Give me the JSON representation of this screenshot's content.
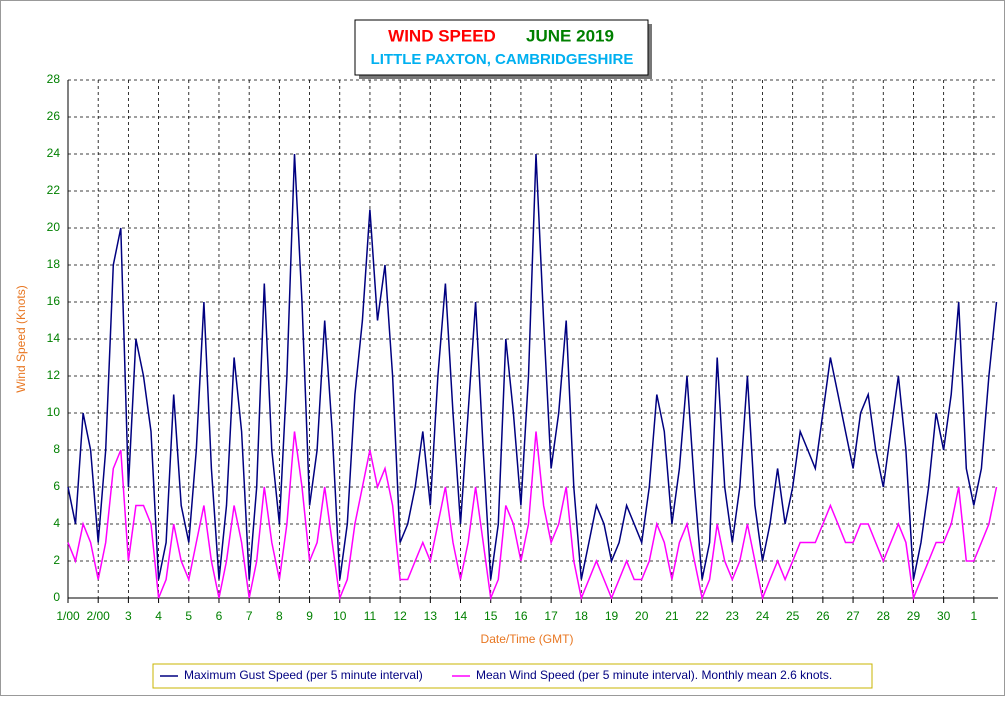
{
  "chart_data": {
    "type": "line",
    "title": "WIND SPEED",
    "period": "JUNE 2019",
    "subtitle": "LITTLE PAXTON, CAMBRIDGESHIRE",
    "ylabel": "Wind Speed (Knots)",
    "xlabel": "Date/Time (GMT)",
    "grid": true,
    "legend": "bottom",
    "xlim": [
      1,
      31.8
    ],
    "ylim": [
      0,
      28
    ],
    "yticks": [
      0,
      2,
      4,
      6,
      8,
      10,
      12,
      14,
      16,
      18,
      20,
      22,
      24,
      26,
      28
    ],
    "xticks": [
      {
        "value": 1,
        "label": "1/00"
      },
      {
        "value": 2,
        "label": "2/00"
      },
      3,
      4,
      5,
      6,
      7,
      8,
      9,
      10,
      11,
      12,
      13,
      14,
      15,
      16,
      17,
      18,
      19,
      20,
      21,
      22,
      23,
      24,
      25,
      26,
      27,
      28,
      29,
      30,
      {
        "value": 31,
        "label": "1"
      }
    ],
    "x": [
      1,
      1.25,
      1.5,
      1.75,
      2,
      2.25,
      2.5,
      2.75,
      3,
      3.25,
      3.5,
      3.75,
      4,
      4.25,
      4.5,
      4.75,
      5,
      5.25,
      5.5,
      5.75,
      6,
      6.25,
      6.5,
      6.75,
      7,
      7.25,
      7.5,
      7.75,
      8,
      8.25,
      8.5,
      8.75,
      9,
      9.25,
      9.5,
      9.75,
      10,
      10.25,
      10.5,
      10.75,
      11,
      11.25,
      11.5,
      11.75,
      12,
      12.25,
      12.5,
      12.75,
      13,
      13.25,
      13.5,
      13.75,
      14,
      14.25,
      14.5,
      14.75,
      15,
      15.25,
      15.5,
      15.75,
      16,
      16.25,
      16.5,
      16.75,
      17,
      17.25,
      17.5,
      17.75,
      18,
      18.25,
      18.5,
      18.75,
      19,
      19.25,
      19.5,
      19.75,
      20,
      20.25,
      20.5,
      20.75,
      21,
      21.25,
      21.5,
      21.75,
      22,
      22.25,
      22.5,
      22.75,
      23,
      23.25,
      23.5,
      23.75,
      24,
      24.25,
      24.5,
      24.75,
      25,
      25.25,
      25.5,
      25.75,
      26,
      26.25,
      26.5,
      26.75,
      27,
      27.25,
      27.5,
      27.75,
      28,
      28.25,
      28.5,
      28.75,
      29,
      29.25,
      29.5,
      29.75,
      30,
      30.25,
      30.5,
      30.75,
      31,
      31.25,
      31.5,
      31.75
    ],
    "series": [
      {
        "name": "Maximum Gust Speed (per 5 minute interval)",
        "color": "#000080",
        "values": [
          6,
          4,
          10,
          8,
          3,
          8,
          18,
          20,
          6,
          14,
          12,
          9,
          1,
          3,
          11,
          5,
          3,
          8,
          16,
          7,
          1,
          5,
          13,
          9,
          1,
          6,
          17,
          8,
          4,
          12,
          24,
          16,
          5,
          8,
          15,
          9,
          1,
          4,
          11,
          15,
          21,
          15,
          18,
          12,
          3,
          4,
          6,
          9,
          5,
          12,
          17,
          10,
          4,
          10,
          16,
          8,
          1,
          4,
          14,
          10,
          5,
          12,
          24,
          15,
          7,
          10,
          15,
          6,
          1,
          3,
          5,
          4,
          2,
          3,
          5,
          4,
          3,
          6,
          11,
          9,
          4,
          7,
          12,
          6,
          1,
          3,
          13,
          6,
          3,
          6,
          12,
          5,
          2,
          4,
          7,
          4,
          6,
          9,
          8,
          7,
          10,
          13,
          11,
          9,
          7,
          10,
          11,
          8,
          6,
          9,
          12,
          8,
          1,
          3,
          6,
          10,
          8,
          11,
          16,
          7,
          5,
          7,
          12,
          16
        ]
      },
      {
        "name": "Mean Wind Speed (per 5 minute interval). Monthly mean 2.6 knots.",
        "color": "#ff00ff",
        "values": [
          3,
          2,
          4,
          3,
          1,
          3,
          7,
          8,
          2,
          5,
          5,
          4,
          0,
          1,
          4,
          2,
          1,
          3,
          5,
          2,
          0,
          2,
          5,
          3,
          0,
          2,
          6,
          3,
          1,
          4,
          9,
          6,
          2,
          3,
          6,
          3,
          0,
          1,
          4,
          6,
          8,
          6,
          7,
          5,
          1,
          1,
          2,
          3,
          2,
          4,
          6,
          3,
          1,
          3,
          6,
          3,
          0,
          1,
          5,
          4,
          2,
          4,
          9,
          5,
          3,
          4,
          6,
          2,
          0,
          1,
          2,
          1,
          0,
          1,
          2,
          1,
          1,
          2,
          4,
          3,
          1,
          3,
          4,
          2,
          0,
          1,
          4,
          2,
          1,
          2,
          4,
          2,
          0,
          1,
          2,
          1,
          2,
          3,
          3,
          3,
          4,
          5,
          4,
          3,
          3,
          4,
          4,
          3,
          2,
          3,
          4,
          3,
          0,
          1,
          2,
          3,
          3,
          4,
          6,
          2,
          2,
          3,
          4,
          6
        ]
      }
    ]
  }
}
